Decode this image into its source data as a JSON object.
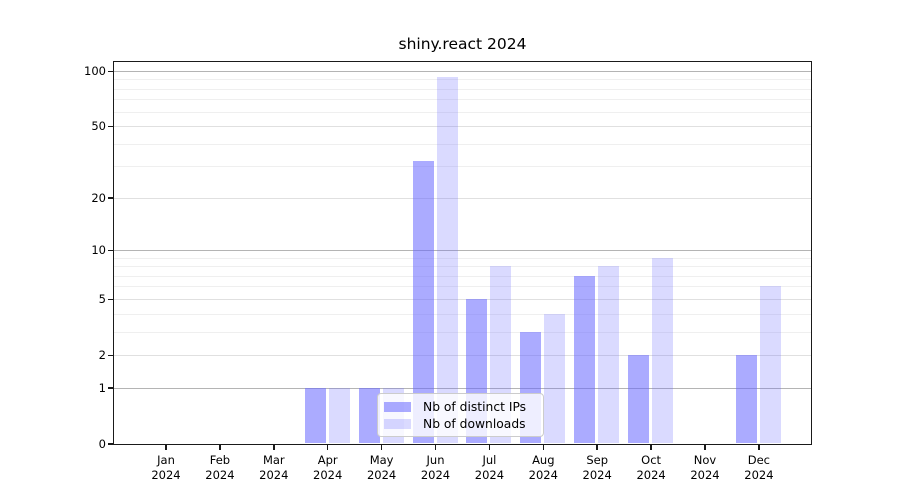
{
  "title": "shiny.react 2024",
  "colors": {
    "background": "#ffffff",
    "text": "#000000",
    "spine": "#1a1a1a",
    "grid_major": "#b4b4b4",
    "grid_mid": "#e0e0e0",
    "grid_minor": "#efefef",
    "bar_distinct_ips": "rgba(102,102,255,0.55)",
    "bar_downloads": "rgba(102,102,255,0.24)"
  },
  "chart_data": {
    "type": "bar",
    "title": "shiny.react 2024",
    "categories": [
      "Jan",
      "Feb",
      "Mar",
      "Apr",
      "May",
      "Jun",
      "Jul",
      "Aug",
      "Sep",
      "Oct",
      "Nov",
      "Dec"
    ],
    "x_tick_year": "2024",
    "series": [
      {
        "name": "Nb of distinct IPs",
        "color": "rgba(102,102,255,0.55)",
        "values": [
          0,
          0,
          0,
          1,
          1,
          32,
          5,
          3,
          7,
          2,
          0,
          2
        ]
      },
      {
        "name": "Nb of downloads",
        "color": "rgba(102,102,255,0.24)",
        "values": [
          0,
          0,
          0,
          1,
          1,
          92,
          8,
          4,
          8,
          9,
          0,
          6
        ]
      }
    ],
    "xlabel": "",
    "ylabel": "",
    "y_axis": {
      "scale": "log10(1+x)",
      "ticks": [
        0,
        1,
        2,
        5,
        10,
        20,
        50,
        100
      ],
      "power_ticks": [
        1,
        10,
        100
      ],
      "minor_ticks": [
        3,
        4,
        6,
        7,
        8,
        9,
        30,
        40,
        60,
        70,
        80,
        90
      ],
      "ylim": [
        0,
        112
      ],
      "grid": true
    },
    "legend": {
      "position": "lower center",
      "entries": [
        "Nb of distinct IPs",
        "Nb of downloads"
      ]
    }
  }
}
